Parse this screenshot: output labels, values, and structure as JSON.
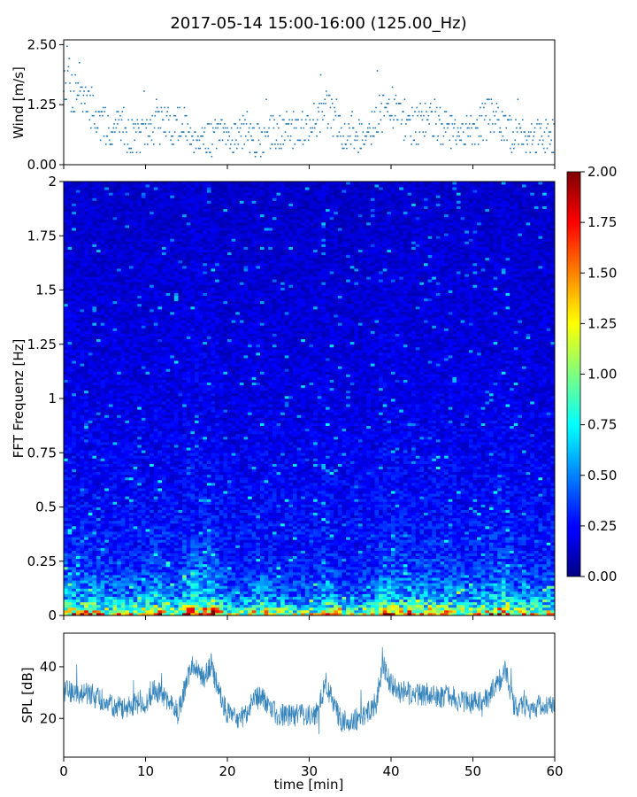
{
  "title": "2017-05-14 15:00-16:00 (125.00_Hz)",
  "colors": {
    "wind": "#1f77b4",
    "spl": "#1f77b4"
  },
  "chart_data": [
    {
      "id": "wind",
      "type": "scatter",
      "ylabel": "Wind [m/s]",
      "xlim": [
        0,
        60
      ],
      "ylim": [
        0,
        2.6
      ],
      "yticks": [
        "0.00",
        "1.25",
        "2.50"
      ],
      "ytick_values": [
        0,
        1.25,
        2.5
      ],
      "series": [
        {
          "x": [
            0,
            0.5,
            1,
            1.5,
            2,
            2.5,
            3,
            3.5,
            4,
            5,
            6,
            7,
            8,
            9,
            10,
            11,
            12,
            13,
            14,
            15,
            16,
            17,
            18,
            19,
            20,
            21,
            22,
            23,
            24,
            25,
            26,
            27,
            28,
            29,
            30,
            31,
            32,
            33,
            34,
            35,
            36,
            37,
            38,
            39,
            40,
            41,
            42,
            43,
            44,
            45,
            46,
            47,
            48,
            49,
            50,
            51,
            52,
            53,
            54,
            55,
            56,
            57,
            58,
            59,
            60
          ],
          "y": [
            1.8,
            2.0,
            1.5,
            1.6,
            1.7,
            1.3,
            1.1,
            1.3,
            0.9,
            0.8,
            0.7,
            0.9,
            0.6,
            0.6,
            0.6,
            0.8,
            0.9,
            0.8,
            0.8,
            0.7,
            0.6,
            0.6,
            0.5,
            0.6,
            0.6,
            0.6,
            0.7,
            0.5,
            0.5,
            0.6,
            0.7,
            0.8,
            0.7,
            0.8,
            0.8,
            1.0,
            1.1,
            1.0,
            0.7,
            0.6,
            0.6,
            0.7,
            0.9,
            1.1,
            1.2,
            1.0,
            0.9,
            0.8,
            0.9,
            1.0,
            0.8,
            0.7,
            0.6,
            0.6,
            0.8,
            0.9,
            1.0,
            0.9,
            0.7,
            0.6,
            0.6,
            0.5,
            0.6,
            0.6,
            0.6
          ]
        }
      ]
    },
    {
      "id": "spectrogram",
      "type": "heatmap",
      "ylabel": "FFT Frequenz [Hz]",
      "xlim": [
        0,
        60
      ],
      "ylim": [
        0,
        2
      ],
      "yticks": [
        "0",
        "0.25",
        "0.5",
        "0.75",
        "1",
        "1.25",
        "1.5",
        "1.75",
        "2"
      ],
      "ytick_values": [
        0,
        0.25,
        0.5,
        0.75,
        1,
        1.25,
        1.5,
        1.75,
        2
      ],
      "colormap": "jet",
      "colorbar": {
        "range": [
          0,
          2
        ],
        "ticks": [
          "0.00",
          "0.25",
          "0.50",
          "0.75",
          "1.00",
          "1.25",
          "1.50",
          "1.75",
          "2.00"
        ],
        "tick_values": [
          0,
          0.25,
          0.5,
          0.75,
          1,
          1.25,
          1.5,
          1.75,
          2
        ]
      },
      "description_values": {
        "freq_profile_hz": [
          0.0,
          0.02,
          0.05,
          0.1,
          0.2,
          0.3,
          0.5,
          1.0,
          2.0
        ],
        "mean_intensity": [
          1.5,
          1.2,
          0.8,
          0.55,
          0.4,
          0.32,
          0.26,
          0.2,
          0.15
        ]
      }
    },
    {
      "id": "spl",
      "type": "line",
      "ylabel": "SPL [dB]",
      "xlabel": "time [min]",
      "xlim": [
        0,
        60
      ],
      "ylim": [
        5,
        53
      ],
      "yticks": [
        "20",
        "40"
      ],
      "ytick_values": [
        20,
        40
      ],
      "xticks": [
        "0",
        "10",
        "20",
        "30",
        "40",
        "50",
        "60"
      ],
      "xtick_values": [
        0,
        10,
        20,
        30,
        40,
        50,
        60
      ],
      "series": [
        {
          "x": [
            0,
            1,
            2,
            3,
            4,
            5,
            6,
            7,
            8,
            9,
            10,
            11,
            12,
            13,
            14,
            15,
            16,
            17,
            18,
            19,
            20,
            21,
            22,
            23,
            24,
            25,
            26,
            27,
            28,
            29,
            30,
            31,
            32,
            33,
            34,
            35,
            36,
            37,
            38,
            39,
            40,
            41,
            42,
            43,
            44,
            45,
            46,
            47,
            48,
            49,
            50,
            51,
            52,
            53,
            54,
            55,
            56,
            57,
            58,
            59,
            60
          ],
          "y": [
            31,
            30,
            29,
            30,
            28,
            27,
            25,
            24,
            25,
            26,
            25,
            31,
            30,
            25,
            22,
            34,
            42,
            35,
            41,
            30,
            22,
            20,
            20,
            27,
            28,
            26,
            22,
            21,
            21,
            22,
            21,
            22,
            34,
            25,
            19,
            19,
            20,
            22,
            23,
            41,
            33,
            30,
            31,
            29,
            29,
            30,
            28,
            30,
            27,
            26,
            26,
            27,
            28,
            34,
            38,
            25,
            25,
            24,
            25,
            25,
            26
          ]
        }
      ]
    }
  ]
}
